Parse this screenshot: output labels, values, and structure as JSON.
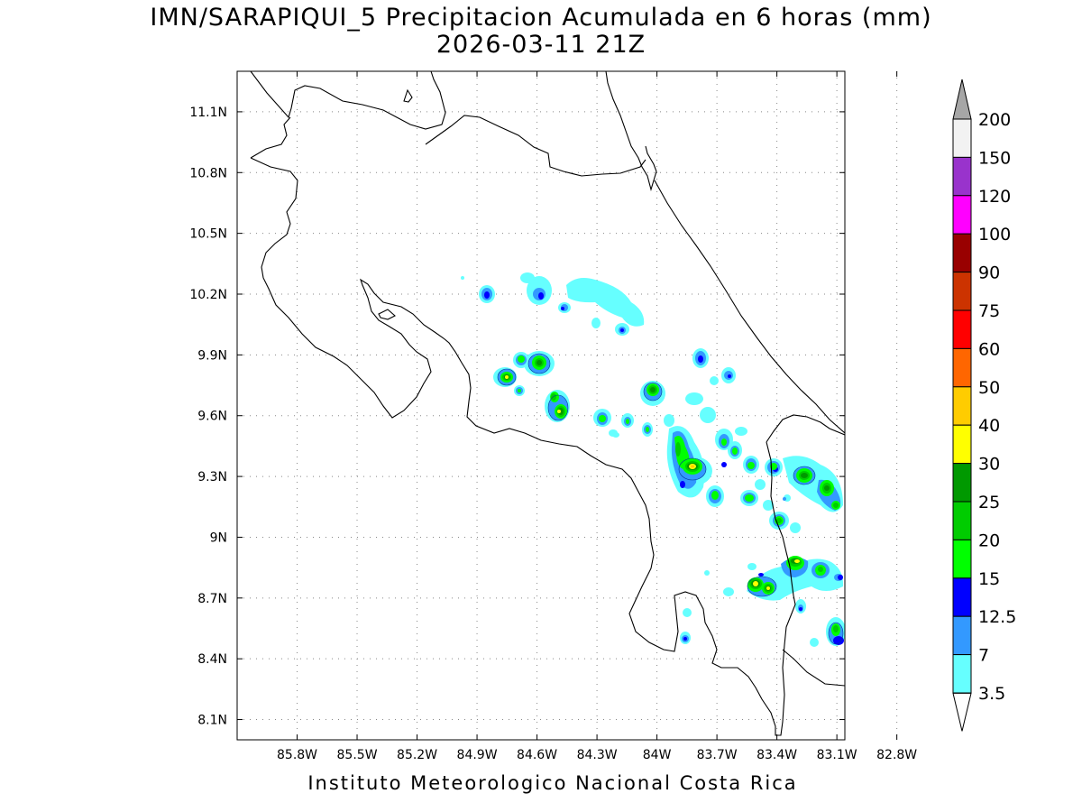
{
  "title_line1": "IMN/SARAPIQUI_5 Precipitacion Acumulada en 6 horas (mm)",
  "title_line2": "2026-03-11 21Z",
  "footer": "Instituto Meteorologico Nacional Costa Rica",
  "map": {
    "lon_range": [
      -86.1,
      -83.06
    ],
    "lat_range": [
      8.0,
      11.3
    ],
    "lon_ticks": [
      "85.8W",
      "85.5W",
      "85.2W",
      "84.9W",
      "84.6W",
      "84.3W",
      "84W",
      "83.7W",
      "83.4W",
      "83.1W",
      "82.8W"
    ],
    "lat_ticks": [
      "11.1N",
      "10.8N",
      "10.5N",
      "10.2N",
      "9.9N",
      "9.6N",
      "9.3N",
      "9N",
      "8.7N",
      "8.4N",
      "8.1N"
    ],
    "grid": true
  },
  "colorbar": {
    "labels": [
      "3.5",
      "7",
      "12.5",
      "15",
      "20",
      "25",
      "30",
      "40",
      "50",
      "60",
      "75",
      "90",
      "100",
      "120",
      "150",
      "200"
    ],
    "colors": [
      "#ffffff",
      "#66ffff",
      "#3399ff",
      "#0000ff",
      "#00ff00",
      "#00cc00",
      "#009900",
      "#ffff00",
      "#ffcc00",
      "#ff6600",
      "#ff0000",
      "#cc3300",
      "#990000",
      "#ff00ff",
      "#9933cc",
      "#f2f2f2"
    ],
    "overflow_color": "#a6a6a6"
  }
}
